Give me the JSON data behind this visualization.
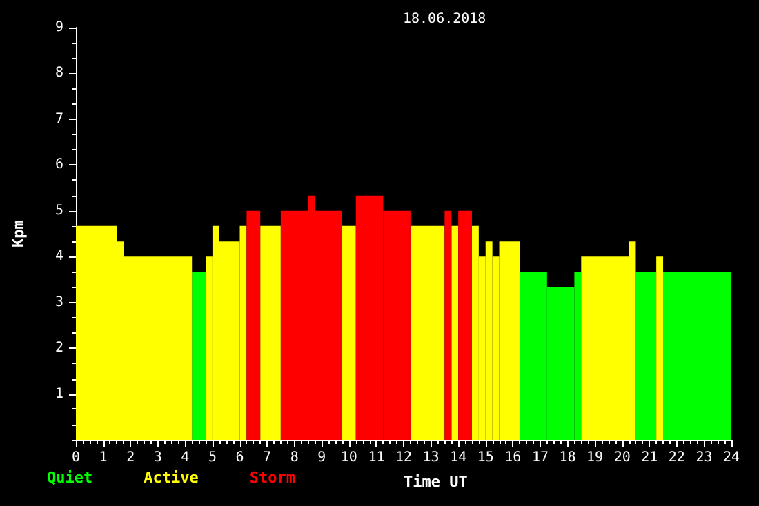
{
  "chart_data": {
    "type": "histogram",
    "title": "18.06.2018",
    "xlabel": "Time UT",
    "ylabel": "Kpm",
    "bins": [
      0,
      1.5,
      1.75,
      4.25,
      4.75,
      5,
      5.25,
      6,
      6.25,
      6.75,
      7.5,
      8.5,
      8.75,
      9.75,
      10.25,
      11.25,
      12.25,
      13.5,
      13.75,
      14,
      14.5,
      14.75,
      15,
      15.25,
      15.5,
      16.25,
      17.25,
      18.25,
      18.5,
      20.25,
      20.5,
      21.25,
      21.5,
      24
    ],
    "series": [
      {
        "name": "Quiet",
        "color": "#00ff00",
        "values": [
          null,
          null,
          null,
          3.67,
          null,
          null,
          null,
          null,
          null,
          null,
          null,
          null,
          null,
          null,
          null,
          null,
          null,
          null,
          null,
          null,
          null,
          null,
          null,
          null,
          null,
          3.67,
          3.33,
          3.67,
          null,
          null,
          3.67,
          null,
          3.67
        ]
      },
      {
        "name": "Active",
        "color": "#ffff00",
        "values": [
          4.67,
          4.33,
          4,
          null,
          4,
          4.67,
          4.33,
          4.67,
          null,
          4.67,
          null,
          null,
          null,
          4.67,
          null,
          null,
          4.67,
          null,
          4.67,
          null,
          4.67,
          4,
          4.33,
          4,
          4.33,
          null,
          null,
          null,
          4,
          4.33,
          null,
          4,
          null
        ]
      },
      {
        "name": "Storm",
        "color": "#ff0000",
        "values": [
          null,
          null,
          null,
          null,
          null,
          null,
          null,
          null,
          5,
          null,
          5,
          5.33,
          5,
          null,
          5.33,
          5,
          null,
          5,
          null,
          5,
          null,
          null,
          null,
          null,
          null,
          null,
          null,
          null,
          null,
          null,
          null,
          null,
          null
        ]
      }
    ],
    "xlim": [
      0,
      24
    ],
    "xticks": [
      0,
      {
        "value": 0.25,
        "label": null
      },
      {
        "value": 0.5,
        "label": null
      },
      {
        "value": 0.75,
        "label": null
      },
      1,
      {
        "value": 1.25,
        "label": null
      },
      {
        "value": 1.5,
        "label": null
      },
      {
        "value": 1.75,
        "label": null
      },
      2,
      {
        "value": 2.25,
        "label": null
      },
      {
        "value": 2.5,
        "label": null
      },
      {
        "value": 2.75,
        "label": null
      },
      3,
      {
        "value": 3.25,
        "label": null
      },
      {
        "value": 3.5,
        "label": null
      },
      {
        "value": 3.75,
        "label": null
      },
      4,
      {
        "value": 4.25,
        "label": null
      },
      {
        "value": 4.5,
        "label": null
      },
      {
        "value": 4.75,
        "label": null
      },
      5,
      {
        "value": 5.25,
        "label": null
      },
      {
        "value": 5.5,
        "label": null
      },
      {
        "value": 5.75,
        "label": null
      },
      6,
      {
        "value": 6.25,
        "label": null
      },
      {
        "value": 6.5,
        "label": null
      },
      {
        "value": 6.75,
        "label": null
      },
      7,
      {
        "value": 7.25,
        "label": null
      },
      {
        "value": 7.5,
        "label": null
      },
      {
        "value": 7.75,
        "label": null
      },
      8,
      {
        "value": 8.25,
        "label": null
      },
      {
        "value": 8.5,
        "label": null
      },
      {
        "value": 8.75,
        "label": null
      },
      9,
      {
        "value": 9.25,
        "label": null
      },
      {
        "value": 9.5,
        "label": null
      },
      {
        "value": 9.75,
        "label": null
      },
      10,
      {
        "value": 10.25,
        "label": null
      },
      {
        "value": 10.5,
        "label": null
      },
      {
        "value": 10.75,
        "label": null
      },
      11,
      {
        "value": 11.25,
        "label": null
      },
      {
        "value": 11.5,
        "label": null
      },
      {
        "value": 11.75,
        "label": null
      },
      12,
      {
        "value": 12.25,
        "label": null
      },
      {
        "value": 12.5,
        "label": null
      },
      {
        "value": 12.75,
        "label": null
      },
      13,
      {
        "value": 13.25,
        "label": null
      },
      {
        "value": 13.5,
        "label": null
      },
      {
        "value": 13.75,
        "label": null
      },
      14,
      {
        "value": 14.25,
        "label": null
      },
      {
        "value": 14.5,
        "label": null
      },
      {
        "value": 14.75,
        "label": null
      },
      15,
      {
        "value": 15.25,
        "label": null
      },
      {
        "value": 15.5,
        "label": null
      },
      {
        "value": 15.75,
        "label": null
      },
      16,
      {
        "value": 16.25,
        "label": null
      },
      {
        "value": 16.5,
        "label": null
      },
      {
        "value": 16.75,
        "label": null
      },
      17,
      {
        "value": 17.25,
        "label": null
      },
      {
        "value": 17.5,
        "label": null
      },
      {
        "value": 17.75,
        "label": null
      },
      18,
      {
        "value": 18.25,
        "label": null
      },
      {
        "value": 18.5,
        "label": null
      },
      {
        "value": 18.75,
        "label": null
      },
      19,
      {
        "value": 19.25,
        "label": null
      },
      {
        "value": 19.5,
        "label": null
      },
      {
        "value": 19.75,
        "label": null
      },
      20,
      {
        "value": 20.25,
        "label": null
      },
      {
        "value": 20.5,
        "label": null
      },
      {
        "value": 20.75,
        "label": null
      },
      21,
      {
        "value": 21.25,
        "label": null
      },
      {
        "value": 21.5,
        "label": null
      },
      {
        "value": 21.75,
        "label": null
      },
      22,
      {
        "value": 22.25,
        "label": null
      },
      {
        "value": 22.5,
        "label": null
      },
      {
        "value": 22.75,
        "label": null
      },
      23,
      {
        "value": 23.25,
        "label": null
      },
      {
        "value": 23.5,
        "label": null
      },
      {
        "value": 23.75,
        "label": null
      },
      24
    ],
    "ylim": [
      0,
      9
    ],
    "yticks": [
      {
        "value": 0,
        "label": null
      },
      {
        "value": 0.33,
        "label": null
      },
      {
        "value": 0.67,
        "label": null
      },
      1,
      {
        "value": 1.33,
        "label": null
      },
      {
        "value": 1.67,
        "label": null
      },
      2,
      {
        "value": 2.33,
        "label": null
      },
      {
        "value": 2.67,
        "label": null
      },
      3,
      {
        "value": 3.33,
        "label": null
      },
      {
        "value": 3.67,
        "label": null
      },
      4,
      {
        "value": 4.33,
        "label": null
      },
      {
        "value": 4.67,
        "label": null
      },
      5,
      {
        "value": 5.33,
        "label": null
      },
      {
        "value": 5.67,
        "label": null
      },
      6,
      {
        "value": 6.33,
        "label": null
      },
      {
        "value": 6.67,
        "label": null
      },
      7,
      {
        "value": 7.33,
        "label": null
      },
      {
        "value": 7.67,
        "label": null
      },
      8,
      {
        "value": 8.33,
        "label": null
      },
      {
        "value": 8.67,
        "label": null
      },
      9
    ],
    "legend": "bottom left",
    "grid": false
  }
}
